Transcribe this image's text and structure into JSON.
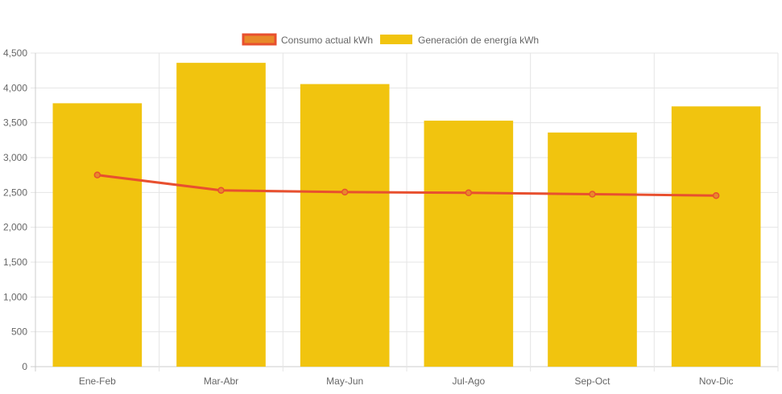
{
  "chart_data": {
    "type": "bar",
    "categories": [
      "Ene-Feb",
      "Mar-Abr",
      "May-Jun",
      "Jul-Ago",
      "Sep-Oct",
      "Nov-Dic"
    ],
    "series": [
      {
        "name": "Consumo actual kWh",
        "type": "line",
        "values": [
          2750,
          2530,
          2505,
          2495,
          2475,
          2455
        ],
        "color": "#e8502f",
        "fill_color": "#e8892a"
      },
      {
        "name": "Generación de energía kWh",
        "type": "bar",
        "values": [
          3780,
          4360,
          4055,
          3530,
          3360,
          3735
        ],
        "color": "#f1c40f"
      }
    ],
    "ylim": [
      0,
      4500
    ],
    "yticks": [
      0,
      500,
      1000,
      1500,
      2000,
      2500,
      3000,
      3500,
      4000,
      4500
    ],
    "ytick_labels": [
      "0",
      "500",
      "1,000",
      "1,500",
      "2,000",
      "2,500",
      "3,000",
      "3,500",
      "4,000",
      "4,500"
    ],
    "grid": true,
    "legend_position": "top-center",
    "title": "",
    "xlabel": "",
    "ylabel": ""
  }
}
